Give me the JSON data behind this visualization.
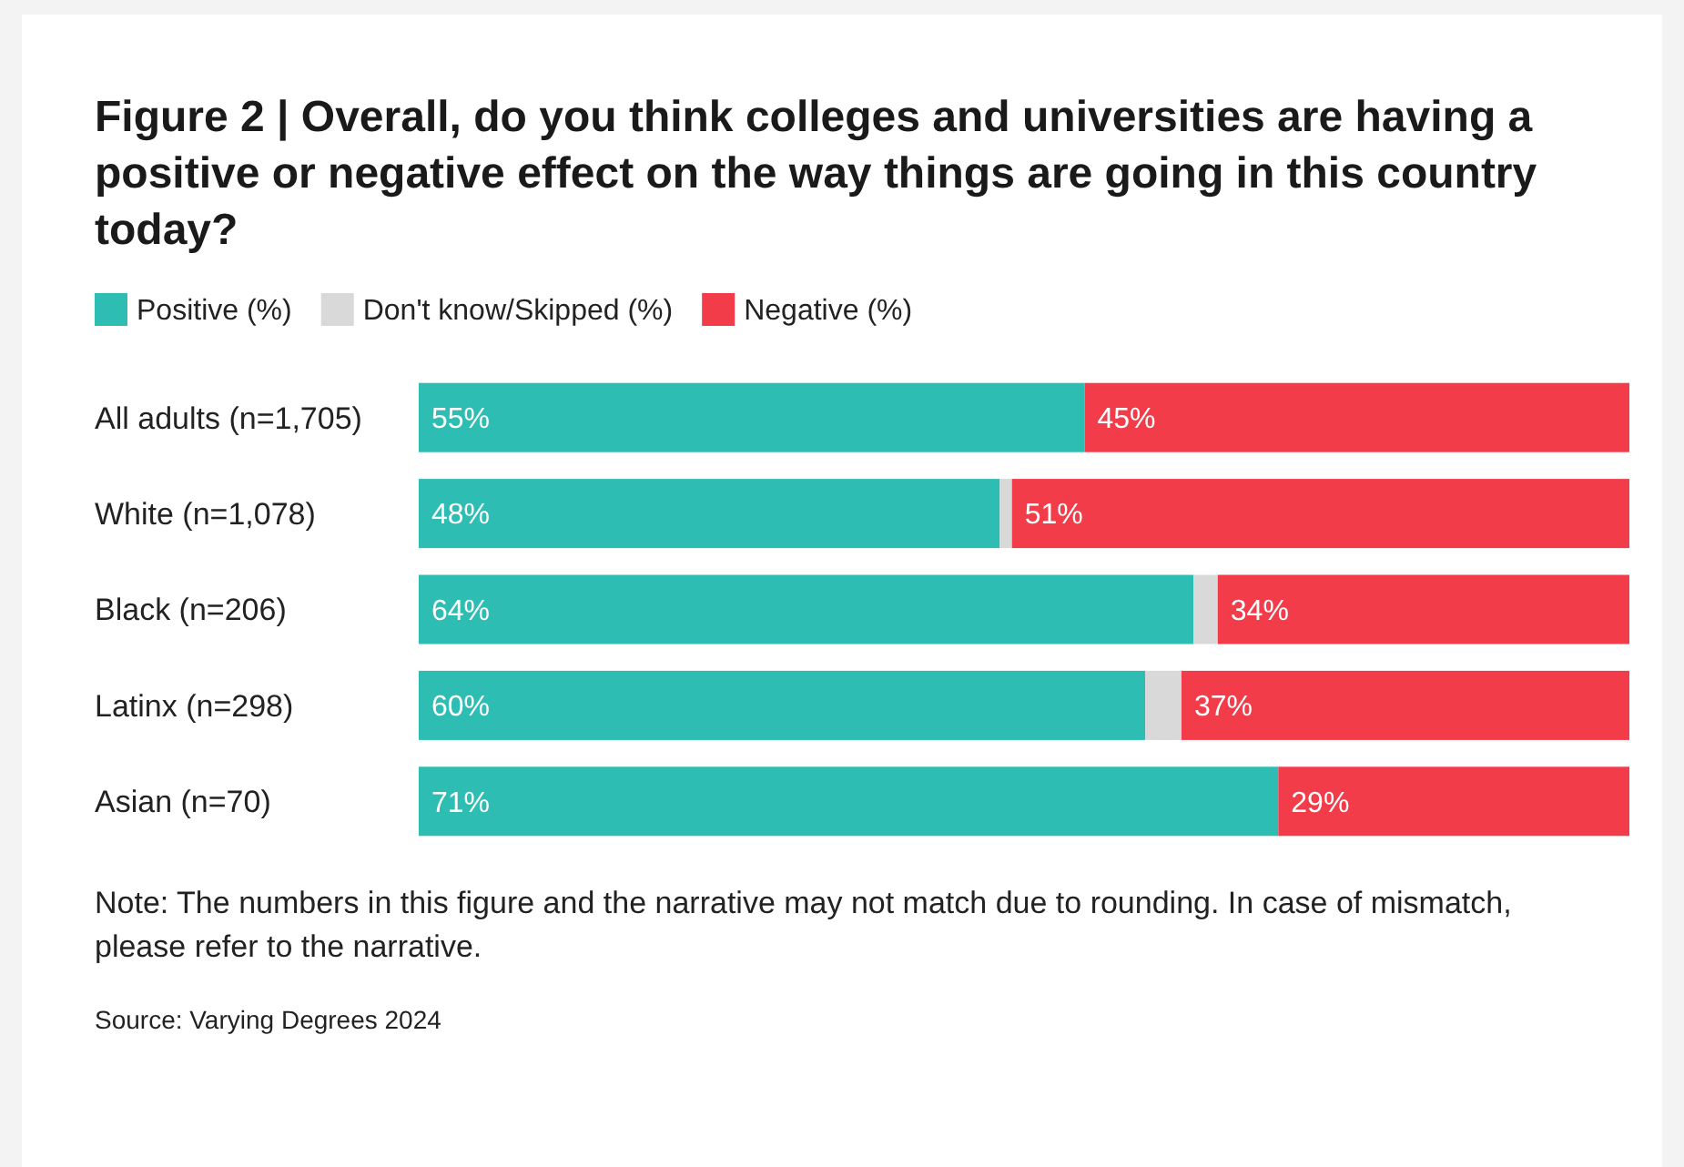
{
  "chart_data": {
    "type": "bar",
    "orientation": "horizontal",
    "stacked": true,
    "title": "Figure 2 | Overall, do you think colleges and universities are having a positive or negative effect on the way things are going in this country today?",
    "categories": [
      "All adults (n=1,705)",
      "White (n=1,078)",
      "Black (n=206)",
      "Latinx (n=298)",
      "Asian (n=70)"
    ],
    "xlim": [
      0,
      100
    ],
    "tick_labels": "y",
    "legend": "top left",
    "series": [
      {
        "name": "Positive (%)",
        "color": "#2ebdb3",
        "values": [
          55,
          48,
          64,
          60,
          71
        ],
        "value_labels": [
          "55%",
          "48%",
          "64%",
          "60%",
          "71%"
        ]
      },
      {
        "name": "Don't know/Skipped (%)",
        "color": "#d9d9d9",
        "values": [
          0,
          1,
          2,
          3,
          0
        ],
        "value_labels": [
          null,
          null,
          null,
          null,
          null
        ]
      },
      {
        "name": "Negative (%)",
        "color": "#f23c4a",
        "values": [
          45,
          51,
          34,
          37,
          29
        ],
        "value_labels": [
          "45%",
          "51%",
          "34%",
          "37%",
          "29%"
        ]
      }
    ],
    "annotations": [
      "Note: The numbers in this figure and the narrative may not match due to rounding. In case of mismatch, please refer to the narrative.",
      "Source: Varying Degrees 2024"
    ]
  }
}
